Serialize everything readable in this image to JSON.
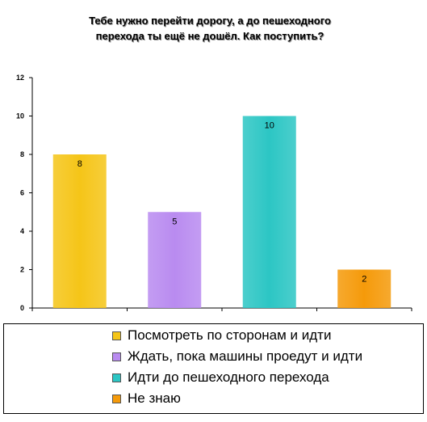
{
  "chart_data": {
    "type": "bar",
    "title": "Тебе нужно перейти дорогу, а до пешеходного перехода ты ещё не дошёл.  Как поступить?",
    "title_lines": [
      "Тебе нужно перейти дорогу, а до пешеходного",
      "перехода ты ещё не дошёл.  Как поступить?"
    ],
    "categories": [
      "Посмотреть по сторонам и идти",
      "Ждать, пока машины проедут и идти",
      "Идти до пешеходного перехода",
      "Не знаю"
    ],
    "values": [
      8,
      5,
      10,
      2
    ],
    "colors": [
      "#F5C518",
      "#B98BF0",
      "#2CC6C4",
      "#F59A0A"
    ],
    "ylim": [
      0,
      12
    ],
    "yticks": [
      0,
      2,
      4,
      6,
      8,
      10,
      12
    ],
    "grid": false,
    "legend_position": "bottom"
  }
}
